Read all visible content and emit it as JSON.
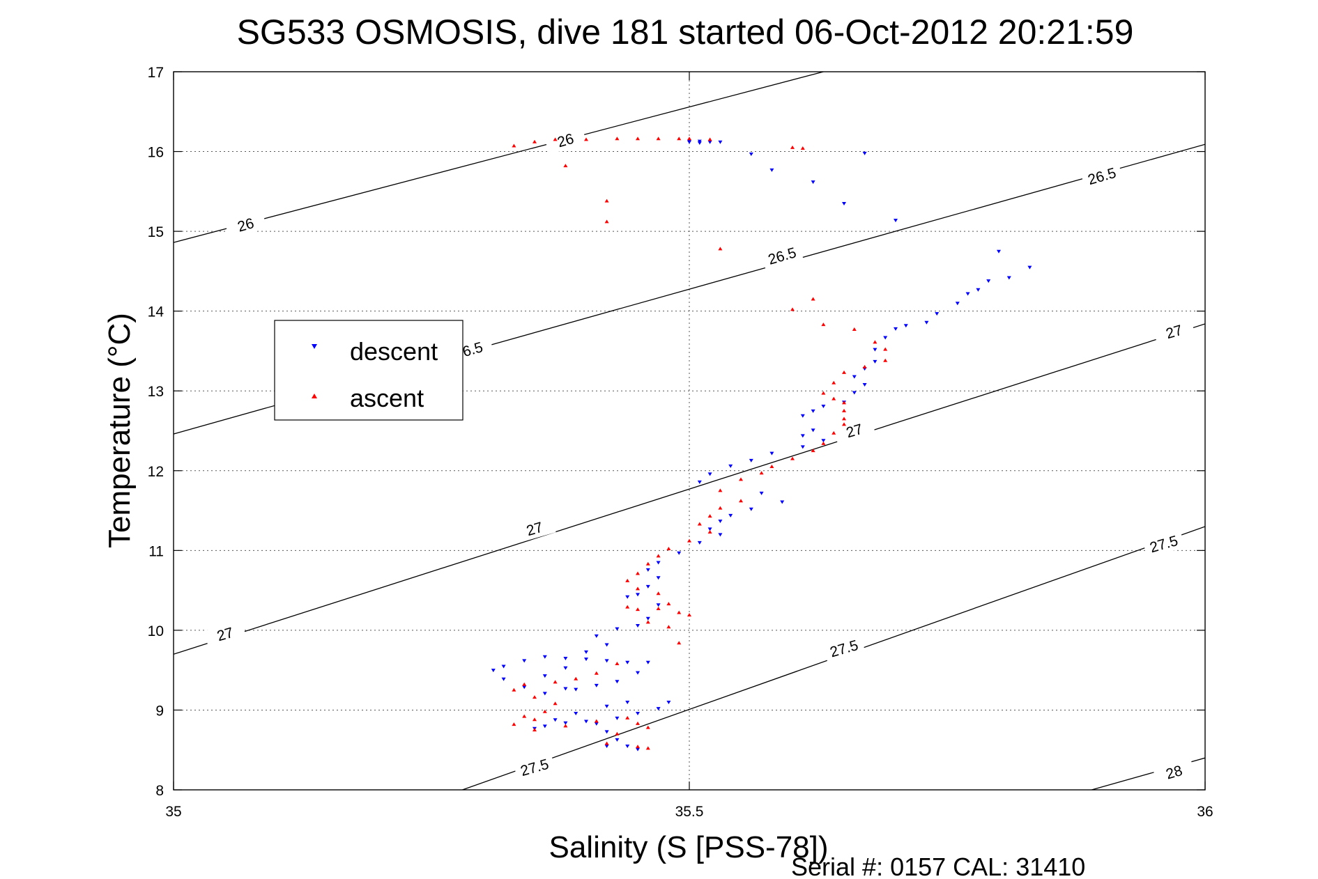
{
  "chart_data": {
    "type": "scatter",
    "title": "SG533 OSMOSIS, dive 181 started 06-Oct-2012 20:21:59",
    "xlabel": "Salinity (S [PSS-78])",
    "ylabel": "Temperature (°C)",
    "xlim": [
      35,
      36
    ],
    "ylim": [
      8,
      17
    ],
    "xticks": [
      "35",
      "35.5",
      "36"
    ],
    "yticks": [
      "8",
      "9",
      "10",
      "11",
      "12",
      "13",
      "14",
      "15",
      "16",
      "17"
    ],
    "grid": true,
    "legend_position": "upper-left",
    "footer": "Serial #: 0157  CAL: 31410",
    "contours": [
      {
        "level": "26",
        "points": [
          [
            35.0,
            14.86
          ],
          [
            35.63,
            17.0
          ]
        ]
      },
      {
        "level": "26.5",
        "points": [
          [
            35.0,
            12.46
          ],
          [
            36.0,
            16.09
          ]
        ]
      },
      {
        "level": "27",
        "points": [
          [
            35.0,
            9.7
          ],
          [
            36.0,
            13.84
          ]
        ]
      },
      {
        "level": "27.5",
        "points": [
          [
            35.28,
            8.0
          ],
          [
            36.0,
            11.3
          ]
        ]
      },
      {
        "level": "28",
        "points": [
          [
            35.89,
            8.0
          ],
          [
            36.0,
            8.4
          ]
        ]
      }
    ],
    "contour_labels": [
      {
        "text": "26",
        "x": 35.07,
        "y": 15.08
      },
      {
        "text": "26",
        "x": 35.38,
        "y": 16.14
      },
      {
        "text": "26.5",
        "x": 35.59,
        "y": 14.69
      },
      {
        "text": "26.5",
        "x": 35.9,
        "y": 15.69
      },
      {
        "text": "6.5",
        "x": 35.29,
        "y": 13.52
      },
      {
        "text": "27",
        "x": 35.05,
        "y": 9.95
      },
      {
        "text": "27",
        "x": 35.35,
        "y": 11.27
      },
      {
        "text": "27",
        "x": 35.66,
        "y": 12.5
      },
      {
        "text": "27",
        "x": 35.97,
        "y": 13.74
      },
      {
        "text": "27.5",
        "x": 35.35,
        "y": 8.28
      },
      {
        "text": "27.5",
        "x": 35.65,
        "y": 9.77
      },
      {
        "text": "27.5",
        "x": 35.96,
        "y": 11.08
      },
      {
        "text": "28",
        "x": 35.97,
        "y": 8.22
      }
    ],
    "series": [
      {
        "name": "descent",
        "color": "#0000ff",
        "marker": "triangle-down",
        "points": [
          [
            35.5,
            16.12
          ],
          [
            35.51,
            16.11
          ],
          [
            35.52,
            16.12
          ],
          [
            35.5,
            16.13
          ],
          [
            35.51,
            16.13
          ],
          [
            35.53,
            16.12
          ],
          [
            35.56,
            15.97
          ],
          [
            35.58,
            15.77
          ],
          [
            35.62,
            15.62
          ],
          [
            35.67,
            15.98
          ],
          [
            35.65,
            15.35
          ],
          [
            35.7,
            15.14
          ],
          [
            35.8,
            14.75
          ],
          [
            35.83,
            14.55
          ],
          [
            35.81,
            14.42
          ],
          [
            35.79,
            14.38
          ],
          [
            35.78,
            14.27
          ],
          [
            35.77,
            14.22
          ],
          [
            35.76,
            14.1
          ],
          [
            35.74,
            13.97
          ],
          [
            35.73,
            13.86
          ],
          [
            35.71,
            13.82
          ],
          [
            35.7,
            13.78
          ],
          [
            35.69,
            13.67
          ],
          [
            35.68,
            13.52
          ],
          [
            35.68,
            13.37
          ],
          [
            35.67,
            13.28
          ],
          [
            35.66,
            13.18
          ],
          [
            35.67,
            13.08
          ],
          [
            35.66,
            12.98
          ],
          [
            35.65,
            12.86
          ],
          [
            35.63,
            12.81
          ],
          [
            35.62,
            12.75
          ],
          [
            35.61,
            12.69
          ],
          [
            35.62,
            12.51
          ],
          [
            35.61,
            12.44
          ],
          [
            35.63,
            12.38
          ],
          [
            35.61,
            12.3
          ],
          [
            35.58,
            12.22
          ],
          [
            35.56,
            12.13
          ],
          [
            35.54,
            12.06
          ],
          [
            35.52,
            11.96
          ],
          [
            35.51,
            11.86
          ],
          [
            35.57,
            11.72
          ],
          [
            35.59,
            11.61
          ],
          [
            35.56,
            11.52
          ],
          [
            35.54,
            11.44
          ],
          [
            35.53,
            11.37
          ],
          [
            35.52,
            11.27
          ],
          [
            35.53,
            11.2
          ],
          [
            35.51,
            11.1
          ],
          [
            35.49,
            10.97
          ],
          [
            35.47,
            10.85
          ],
          [
            35.46,
            10.76
          ],
          [
            35.47,
            10.66
          ],
          [
            35.46,
            10.55
          ],
          [
            35.45,
            10.45
          ],
          [
            35.44,
            10.42
          ],
          [
            35.47,
            10.32
          ],
          [
            35.46,
            10.15
          ],
          [
            35.45,
            10.06
          ],
          [
            35.43,
            10.02
          ],
          [
            35.41,
            9.93
          ],
          [
            35.42,
            9.82
          ],
          [
            35.4,
            9.73
          ],
          [
            35.38,
            9.65
          ],
          [
            35.36,
            9.67
          ],
          [
            35.34,
            9.62
          ],
          [
            35.32,
            9.55
          ],
          [
            35.31,
            9.5
          ],
          [
            35.32,
            9.39
          ],
          [
            35.34,
            9.29
          ],
          [
            35.36,
            9.21
          ],
          [
            35.38,
            9.27
          ],
          [
            35.41,
            9.31
          ],
          [
            35.43,
            9.36
          ],
          [
            35.45,
            9.47
          ],
          [
            35.46,
            9.6
          ],
          [
            35.44,
            9.6
          ],
          [
            35.42,
            9.62
          ],
          [
            35.4,
            9.64
          ],
          [
            35.38,
            9.53
          ],
          [
            35.36,
            9.43
          ],
          [
            35.39,
            9.26
          ],
          [
            35.42,
            9.05
          ],
          [
            35.44,
            9.1
          ],
          [
            35.48,
            9.1
          ],
          [
            35.47,
            9.02
          ],
          [
            35.45,
            8.96
          ],
          [
            35.43,
            8.9
          ],
          [
            35.4,
            8.86
          ],
          [
            35.38,
            8.84
          ],
          [
            35.36,
            8.8
          ],
          [
            35.35,
            8.77
          ],
          [
            35.37,
            8.88
          ],
          [
            35.39,
            8.96
          ],
          [
            35.41,
            8.83
          ],
          [
            35.42,
            8.73
          ],
          [
            35.43,
            8.63
          ],
          [
            35.44,
            8.55
          ],
          [
            35.45,
            8.51
          ],
          [
            35.42,
            8.55
          ]
        ]
      },
      {
        "name": "ascent",
        "color": "#ff0000",
        "marker": "triangle-up",
        "points": [
          [
            35.33,
            16.07
          ],
          [
            35.35,
            16.12
          ],
          [
            35.37,
            16.15
          ],
          [
            35.4,
            16.15
          ],
          [
            35.43,
            16.16
          ],
          [
            35.45,
            16.16
          ],
          [
            35.47,
            16.16
          ],
          [
            35.49,
            16.16
          ],
          [
            35.5,
            16.16
          ],
          [
            35.52,
            16.15
          ],
          [
            35.38,
            15.82
          ],
          [
            35.42,
            15.38
          ],
          [
            35.42,
            15.12
          ],
          [
            35.6,
            16.05
          ],
          [
            35.61,
            16.04
          ],
          [
            35.53,
            14.78
          ],
          [
            35.6,
            14.02
          ],
          [
            35.62,
            14.15
          ],
          [
            35.63,
            13.83
          ],
          [
            35.66,
            13.77
          ],
          [
            35.68,
            13.61
          ],
          [
            35.69,
            13.52
          ],
          [
            35.69,
            13.38
          ],
          [
            35.67,
            13.3
          ],
          [
            35.65,
            13.23
          ],
          [
            35.64,
            13.1
          ],
          [
            35.63,
            12.97
          ],
          [
            35.64,
            12.9
          ],
          [
            35.65,
            12.85
          ],
          [
            35.65,
            12.75
          ],
          [
            35.65,
            12.65
          ],
          [
            35.65,
            12.58
          ],
          [
            35.64,
            12.47
          ],
          [
            35.63,
            12.34
          ],
          [
            35.62,
            12.25
          ],
          [
            35.6,
            12.15
          ],
          [
            35.58,
            12.05
          ],
          [
            35.57,
            11.97
          ],
          [
            35.55,
            11.89
          ],
          [
            35.53,
            11.75
          ],
          [
            35.55,
            11.62
          ],
          [
            35.53,
            11.53
          ],
          [
            35.52,
            11.43
          ],
          [
            35.51,
            11.33
          ],
          [
            35.52,
            11.23
          ],
          [
            35.5,
            11.12
          ],
          [
            35.48,
            11.02
          ],
          [
            35.47,
            10.93
          ],
          [
            35.46,
            10.83
          ],
          [
            35.45,
            10.71
          ],
          [
            35.44,
            10.62
          ],
          [
            35.45,
            10.52
          ],
          [
            35.47,
            10.46
          ],
          [
            35.48,
            10.33
          ],
          [
            35.49,
            10.22
          ],
          [
            35.47,
            10.27
          ],
          [
            35.45,
            10.26
          ],
          [
            35.44,
            10.29
          ],
          [
            35.46,
            10.1
          ],
          [
            35.48,
            10.04
          ],
          [
            35.5,
            10.19
          ],
          [
            35.49,
            9.84
          ],
          [
            35.43,
            9.58
          ],
          [
            35.41,
            9.46
          ],
          [
            35.39,
            9.39
          ],
          [
            35.37,
            9.35
          ],
          [
            35.34,
            9.32
          ],
          [
            35.33,
            9.25
          ],
          [
            35.35,
            9.16
          ],
          [
            35.37,
            9.08
          ],
          [
            35.36,
            8.98
          ],
          [
            35.34,
            8.92
          ],
          [
            35.35,
            8.88
          ],
          [
            35.33,
            8.82
          ],
          [
            35.35,
            8.75
          ],
          [
            35.38,
            8.8
          ],
          [
            35.41,
            8.86
          ],
          [
            35.44,
            8.9
          ],
          [
            35.45,
            8.83
          ],
          [
            35.46,
            8.78
          ],
          [
            35.43,
            8.7
          ],
          [
            35.42,
            8.58
          ],
          [
            35.45,
            8.54
          ],
          [
            35.46,
            8.52
          ]
        ]
      }
    ]
  }
}
